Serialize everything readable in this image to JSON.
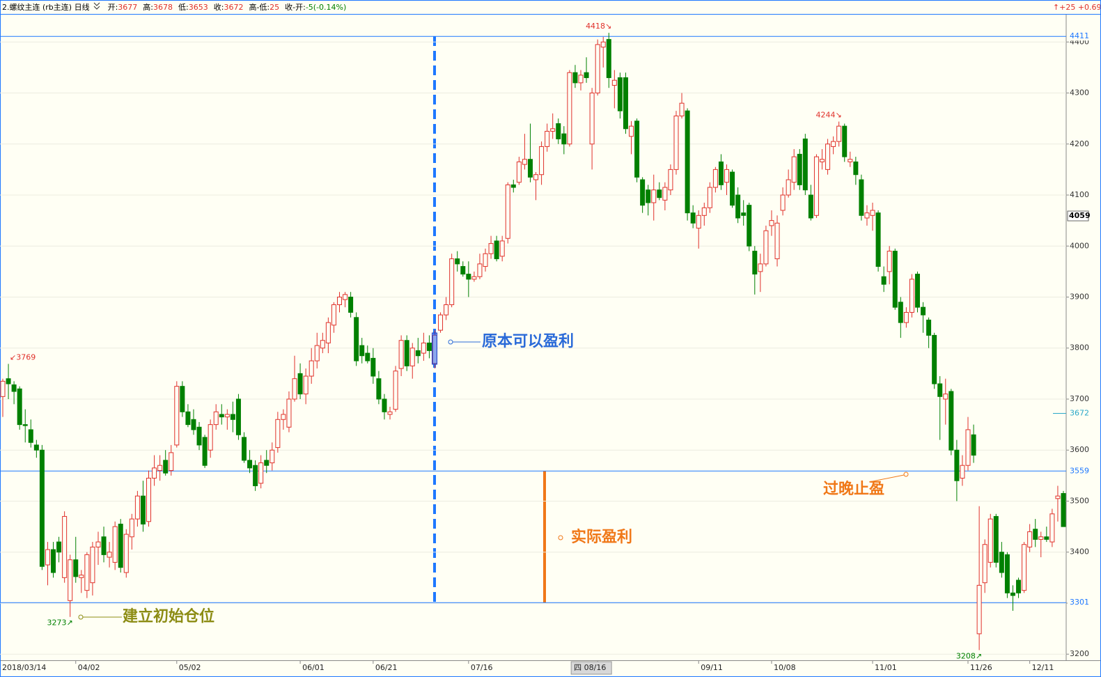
{
  "header": {
    "title": "2.螺纹主连 (rb主连) 日线",
    "fields": [
      {
        "label": "开:",
        "value": 3677,
        "color": "#e0302a"
      },
      {
        "label": "高:",
        "value": 3678,
        "color": "#e0302a"
      },
      {
        "label": "低:",
        "value": 3653,
        "color": "#e0302a"
      },
      {
        "label": "收:",
        "value": 3672,
        "color": "#e0302a"
      },
      {
        "label": "高-低:",
        "value": 25,
        "color": "#e0302a"
      },
      {
        "label": "收-开:",
        "value": "-5(-0.14%)",
        "color": "#008000"
      }
    ],
    "right": [
      "↑+25",
      "+0.69%"
    ]
  },
  "chart_data": {
    "type": "candlestick",
    "up_color": "#e0302a",
    "down_color": "#008000",
    "categories": [
      "2018/03/14",
      null,
      null,
      null,
      null,
      null,
      null,
      null,
      null,
      null,
      null,
      null,
      null,
      "04/02",
      null,
      null,
      null,
      null,
      null,
      null,
      null,
      null,
      null,
      null,
      null,
      null,
      null,
      null,
      null,
      null,
      null,
      "05/02",
      null,
      null,
      null,
      null,
      null,
      null,
      null,
      null,
      null,
      null,
      null,
      null,
      null,
      null,
      null,
      null,
      null,
      null,
      null,
      null,
      null,
      "06/01",
      null,
      null,
      null,
      null,
      null,
      null,
      null,
      null,
      null,
      null,
      null,
      null,
      "06/21",
      null,
      null,
      null,
      null,
      null,
      null,
      null,
      null,
      null,
      null,
      null,
      null,
      null,
      null,
      null,
      null,
      "07/16",
      null,
      null,
      null,
      null,
      null,
      null,
      null,
      null,
      null,
      null,
      null,
      null,
      null,
      null,
      null,
      null,
      null,
      null,
      null,
      null,
      null,
      null,
      "四 08/16",
      null,
      null,
      null,
      null,
      null,
      null,
      null,
      null,
      null,
      null,
      null,
      null,
      null,
      null,
      null,
      null,
      null,
      "09/11",
      null,
      null,
      null,
      null,
      null,
      null,
      null,
      null,
      null,
      null,
      null,
      null,
      "10/08",
      null,
      null,
      null,
      null,
      null,
      null,
      null,
      null,
      null,
      null,
      null,
      null,
      null,
      null,
      null,
      null,
      null,
      "11/01",
      null,
      null,
      null,
      null,
      null,
      null,
      null,
      null,
      null,
      null,
      null,
      null,
      null,
      null,
      null,
      null,
      "11/26",
      null,
      null,
      null,
      null,
      null,
      null,
      null,
      null,
      null,
      null,
      "12/11",
      null,
      null,
      null,
      null,
      null,
      null
    ],
    "candles": [
      [
        3705,
        3740,
        3665,
        3735
      ],
      [
        3740,
        3769,
        3700,
        3730
      ],
      [
        3728,
        3735,
        3690,
        3715
      ],
      [
        3720,
        3725,
        3640,
        3650
      ],
      [
        3650,
        3680,
        3615,
        3648
      ],
      [
        3640,
        3660,
        3605,
        3615
      ],
      [
        3610,
        3620,
        3585,
        3600
      ],
      [
        3600,
        3610,
        3365,
        3372
      ],
      [
        3375,
        3420,
        3335,
        3405
      ],
      [
        3405,
        3420,
        3350,
        3360
      ],
      [
        3420,
        3430,
        3380,
        3400
      ],
      [
        3350,
        3480,
        3340,
        3470
      ],
      [
        3305,
        3395,
        3273,
        3385
      ],
      [
        3385,
        3430,
        3340,
        3352
      ],
      [
        3350,
        3365,
        3320,
        3355
      ],
      [
        3325,
        3400,
        3310,
        3395
      ],
      [
        3340,
        3420,
        3315,
        3410
      ],
      [
        3410,
        3440,
        3375,
        3420
      ],
      [
        3430,
        3450,
        3380,
        3395
      ],
      [
        3390,
        3420,
        3370,
        3400
      ],
      [
        3380,
        3460,
        3365,
        3450
      ],
      [
        3455,
        3465,
        3360,
        3370
      ],
      [
        3360,
        3445,
        3350,
        3435
      ],
      [
        3430,
        3475,
        3405,
        3465
      ],
      [
        3465,
        3520,
        3450,
        3510
      ],
      [
        3510,
        3540,
        3440,
        3455
      ],
      [
        3460,
        3560,
        3450,
        3545
      ],
      [
        3545,
        3590,
        3530,
        3565
      ],
      [
        3560,
        3590,
        3540,
        3570
      ],
      [
        3580,
        3600,
        3550,
        3555
      ],
      [
        3560,
        3610,
        3550,
        3595
      ],
      [
        3610,
        3735,
        3605,
        3725
      ],
      [
        3725,
        3735,
        3665,
        3675
      ],
      [
        3675,
        3690,
        3645,
        3650
      ],
      [
        3660,
        3680,
        3630,
        3640
      ],
      [
        3645,
        3655,
        3600,
        3610
      ],
      [
        3625,
        3630,
        3565,
        3570
      ],
      [
        3600,
        3660,
        3585,
        3650
      ],
      [
        3650,
        3690,
        3640,
        3675
      ],
      [
        3670,
        3690,
        3650,
        3665
      ],
      [
        3665,
        3680,
        3640,
        3670
      ],
      [
        3670,
        3695,
        3635,
        3660
      ],
      [
        3700,
        3710,
        3620,
        3630
      ],
      [
        3625,
        3635,
        3575,
        3580
      ],
      [
        3580,
        3600,
        3555,
        3565
      ],
      [
        3570,
        3580,
        3520,
        3530
      ],
      [
        3535,
        3590,
        3525,
        3575
      ],
      [
        3580,
        3600,
        3555,
        3570
      ],
      [
        3575,
        3615,
        3560,
        3600
      ],
      [
        3605,
        3675,
        3595,
        3660
      ],
      [
        3660,
        3680,
        3640,
        3670
      ],
      [
        3645,
        3715,
        3635,
        3700
      ],
      [
        3700,
        3785,
        3695,
        3740
      ],
      [
        3750,
        3770,
        3700,
        3710
      ],
      [
        3710,
        3760,
        3690,
        3745
      ],
      [
        3745,
        3800,
        3730,
        3775
      ],
      [
        3775,
        3830,
        3760,
        3805
      ],
      [
        3800,
        3830,
        3790,
        3815
      ],
      [
        3810,
        3860,
        3790,
        3850
      ],
      [
        3845,
        3890,
        3830,
        3885
      ],
      [
        3885,
        3910,
        3870,
        3900
      ],
      [
        3895,
        3910,
        3880,
        3905
      ],
      [
        3900,
        3910,
        3860,
        3870
      ],
      [
        3860,
        3870,
        3765,
        3775
      ],
      [
        3805,
        3820,
        3770,
        3785
      ],
      [
        3790,
        3805,
        3770,
        3775
      ],
      [
        3780,
        3800,
        3730,
        3745
      ],
      [
        3740,
        3755,
        3690,
        3700
      ],
      [
        3700,
        3710,
        3660,
        3675
      ],
      [
        3670,
        3685,
        3660,
        3675
      ],
      [
        3680,
        3765,
        3675,
        3755
      ],
      [
        3760,
        3825,
        3745,
        3815
      ],
      [
        3815,
        3825,
        3755,
        3765
      ],
      [
        3765,
        3810,
        3740,
        3800
      ],
      [
        3795,
        3820,
        3770,
        3785
      ],
      [
        3790,
        3830,
        3775,
        3810
      ],
      [
        3810,
        3825,
        3780,
        3795
      ],
      [
        3770,
        3835,
        3760,
        3825
      ],
      [
        3835,
        3870,
        3830,
        3865
      ],
      [
        3865,
        3900,
        3855,
        3885
      ],
      [
        3885,
        3985,
        3880,
        3975
      ],
      [
        3975,
        3990,
        3950,
        3965
      ],
      [
        3960,
        3970,
        3940,
        3945
      ],
      [
        3945,
        3970,
        3900,
        3935
      ],
      [
        3935,
        3950,
        3930,
        3940
      ],
      [
        3940,
        3985,
        3935,
        3965
      ],
      [
        3960,
        3995,
        3950,
        3985
      ],
      [
        3985,
        4020,
        3975,
        4005
      ],
      [
        4010,
        4020,
        3970,
        3975
      ],
      [
        3980,
        4020,
        3970,
        4010
      ],
      [
        4015,
        4125,
        4005,
        4120
      ],
      [
        4120,
        4130,
        4105,
        4115
      ],
      [
        4125,
        4175,
        4120,
        4165
      ],
      [
        4160,
        4220,
        4150,
        4170
      ],
      [
        4170,
        4240,
        4125,
        4135
      ],
      [
        4130,
        4145,
        4090,
        4140
      ],
      [
        4140,
        4205,
        4120,
        4195
      ],
      [
        4195,
        4240,
        4185,
        4225
      ],
      [
        4225,
        4260,
        4210,
        4230
      ],
      [
        4240,
        4250,
        4200,
        4210
      ],
      [
        4220,
        4235,
        4180,
        4200
      ],
      [
        4200,
        4345,
        4195,
        4340
      ],
      [
        4340,
        4355,
        4310,
        4320
      ],
      [
        4320,
        4345,
        4305,
        4335
      ],
      [
        4340,
        4370,
        4320,
        4330
      ],
      [
        4200,
        4310,
        4150,
        4300
      ],
      [
        4300,
        4405,
        4295,
        4395
      ],
      [
        4390,
        4410,
        4350,
        4400
      ],
      [
        4405,
        4418,
        4310,
        4330
      ],
      [
        4315,
        4345,
        4270,
        4325
      ],
      [
        4330,
        4340,
        4250,
        4265
      ],
      [
        4330,
        4340,
        4220,
        4230
      ],
      [
        4215,
        4245,
        4180,
        4235
      ],
      [
        4245,
        4250,
        4125,
        4135
      ],
      [
        4130,
        4135,
        4065,
        4080
      ],
      [
        4110,
        4120,
        4060,
        4085
      ],
      [
        4085,
        4140,
        4050,
        4110
      ],
      [
        4110,
        4125,
        4090,
        4095
      ],
      [
        4090,
        4125,
        4070,
        4115
      ],
      [
        4110,
        4160,
        4100,
        4150
      ],
      [
        4150,
        4265,
        4140,
        4255
      ],
      [
        4255,
        4300,
        4250,
        4280
      ],
      [
        4265,
        4270,
        4050,
        4065
      ],
      [
        4065,
        4080,
        4035,
        4045
      ],
      [
        4035,
        4070,
        3995,
        4060
      ],
      [
        4060,
        4085,
        4040,
        4075
      ],
      [
        4075,
        4125,
        4065,
        4115
      ],
      [
        4115,
        4155,
        4105,
        4150
      ],
      [
        4165,
        4180,
        4110,
        4120
      ],
      [
        4125,
        4160,
        4100,
        4150
      ],
      [
        4145,
        4150,
        4075,
        4080
      ],
      [
        4100,
        4115,
        4045,
        4055
      ],
      [
        4065,
        4090,
        4040,
        4060
      ],
      [
        4080,
        4085,
        3990,
        4000
      ],
      [
        3990,
        4000,
        3905,
        3945
      ],
      [
        3950,
        3985,
        3910,
        3965
      ],
      [
        3965,
        4040,
        3960,
        4030
      ],
      [
        4040,
        4070,
        4020,
        4050
      ],
      [
        3975,
        4060,
        3960,
        4045
      ],
      [
        4070,
        4115,
        4060,
        4100
      ],
      [
        4100,
        4150,
        4095,
        4130
      ],
      [
        4125,
        4190,
        4110,
        4175
      ],
      [
        4180,
        4190,
        4110,
        4120
      ],
      [
        4210,
        4220,
        4100,
        4110
      ],
      [
        4100,
        4120,
        4050,
        4055
      ],
      [
        4060,
        4180,
        4055,
        4175
      ],
      [
        4165,
        4190,
        4150,
        4170
      ],
      [
        4150,
        4210,
        4140,
        4200
      ],
      [
        4195,
        4215,
        4180,
        4205
      ],
      [
        4205,
        4244,
        4195,
        4235
      ],
      [
        4235,
        4240,
        4165,
        4175
      ],
      [
        4165,
        4185,
        4155,
        4170
      ],
      [
        4165,
        4175,
        4120,
        4140
      ],
      [
        4130,
        4140,
        4050,
        4060
      ],
      [
        4055,
        4080,
        4040,
        4065
      ],
      [
        4060,
        4085,
        4030,
        4070
      ],
      [
        4065,
        4070,
        3950,
        3960
      ],
      [
        3940,
        3960,
        3910,
        3925
      ],
      [
        3950,
        4000,
        3925,
        3990
      ],
      [
        3990,
        3995,
        3875,
        3880
      ],
      [
        3890,
        3900,
        3820,
        3850
      ],
      [
        3850,
        3880,
        3840,
        3870
      ],
      [
        3870,
        3945,
        3860,
        3935
      ],
      [
        3945,
        3950,
        3870,
        3880
      ],
      [
        3880,
        3890,
        3830,
        3865
      ],
      [
        3855,
        3860,
        3800,
        3825
      ],
      [
        3825,
        3830,
        3720,
        3730
      ],
      [
        3730,
        3745,
        3620,
        3705
      ],
      [
        3700,
        3740,
        3650,
        3710
      ],
      [
        3715,
        3720,
        3590,
        3600
      ],
      [
        3600,
        3620,
        3500,
        3540
      ],
      [
        3545,
        3590,
        3530,
        3570
      ],
      [
        3570,
        3665,
        3560,
        3640
      ],
      [
        3630,
        3650,
        3575,
        3590
      ],
      [
        3240,
        3490,
        3208,
        3335
      ],
      [
        3340,
        3425,
        3320,
        3415
      ],
      [
        3380,
        3475,
        3370,
        3465
      ],
      [
        3470,
        3475,
        3370,
        3380
      ],
      [
        3400,
        3420,
        3350,
        3360
      ],
      [
        3395,
        3400,
        3310,
        3320
      ],
      [
        3320,
        3335,
        3285,
        3315
      ],
      [
        3345,
        3350,
        3310,
        3320
      ],
      [
        3325,
        3420,
        3320,
        3415
      ],
      [
        3410,
        3455,
        3400,
        3440
      ],
      [
        3445,
        3465,
        3410,
        3425
      ],
      [
        3425,
        3440,
        3390,
        3430
      ],
      [
        3430,
        3450,
        3420,
        3425
      ],
      [
        3420,
        3485,
        3410,
        3475
      ],
      [
        3505,
        3530,
        3460,
        3510
      ],
      [
        3515,
        3520,
        3450,
        3450
      ]
    ],
    "ylim": [
      3188,
      4455
    ],
    "yticks": [
      3200,
      3300,
      3400,
      3500,
      3600,
      3700,
      3800,
      3900,
      4000,
      4100,
      4200,
      4300,
      4400
    ],
    "grid": true,
    "hlines": [
      4411,
      3559,
      3301
    ],
    "hline_color": "#1e78ff",
    "cursor_price": 4059,
    "last_price": 3672,
    "extremes": [
      {
        "value": 3769,
        "label": "↙3769"
      },
      {
        "value": 4418,
        "label": "4418↘"
      },
      {
        "value": 4244,
        "label": "4244↘"
      },
      {
        "value": 3273,
        "label": "3273↗"
      },
      {
        "value": 3208,
        "label": "3208↗"
      }
    ],
    "annotations": [
      {
        "text": "原本可以盈利",
        "color": "#2a6ad8"
      },
      {
        "text": "实际盈利",
        "color": "#f07818"
      },
      {
        "text": "过晚止盈",
        "color": "#f07818"
      },
      {
        "text": "建立初始仓位",
        "color": "#8c8c14"
      }
    ]
  }
}
